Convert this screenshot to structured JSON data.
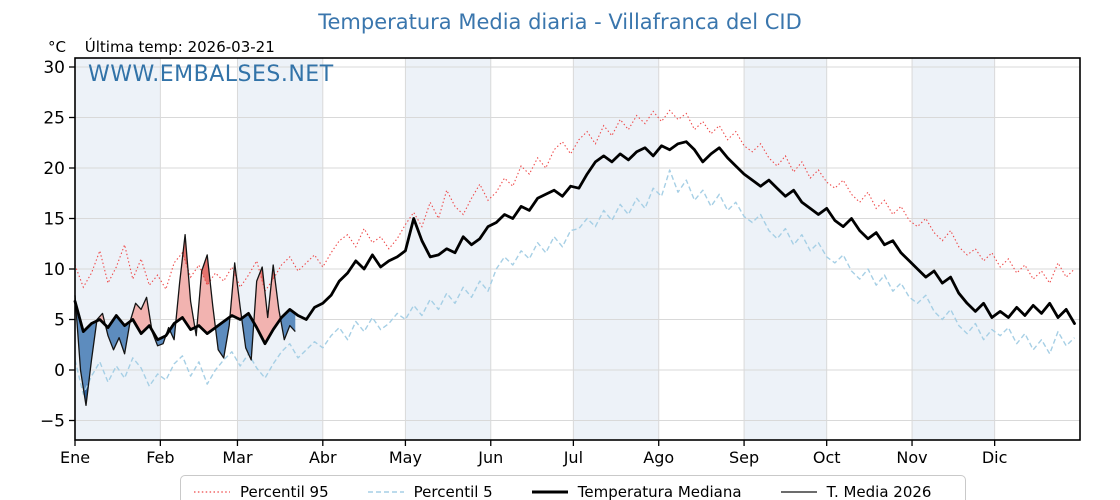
{
  "colors": {
    "title": "#3a76ad",
    "watermark": "#3273a8",
    "band": "#edf2f8",
    "grid": "#d9d9d9",
    "axis": "#000000",
    "p95": "#ee4848",
    "p5": "#a6cfe5",
    "median": "#000000",
    "t2026": "#141414",
    "fill_above": "#f2b3b0",
    "fill_above_extreme": "#e4736e",
    "fill_below": "#5d8cbe",
    "fill_below_extreme": "#2f639e",
    "legend_border": "#c9c9c9"
  },
  "chart_data": {
    "type": "line",
    "title": "Temperatura Media diaria - Villafranca del CID",
    "unit_label": "°C",
    "last_temp_label": "Última temp: 2026-03-21",
    "watermark": "WWW.EMBALSES.NET",
    "x_tick_labels": [
      "Ene",
      "Feb",
      "Mar",
      "Abr",
      "May",
      "Jun",
      "Jul",
      "Ago",
      "Sep",
      "Oct",
      "Nov",
      "Dic"
    ],
    "month_days": [
      31,
      28,
      31,
      30,
      31,
      30,
      31,
      31,
      30,
      31,
      30,
      31
    ],
    "y_ticks": [
      30,
      25,
      20,
      15,
      10,
      5,
      0,
      -5
    ],
    "y_tick_labels": [
      "30",
      "25",
      "20",
      "15",
      "10",
      "5",
      "0",
      "−5"
    ],
    "ylim": [
      -6.9,
      30.9
    ],
    "xlim_days": [
      0,
      365
    ],
    "grid": true,
    "alternating_month_bands": true,
    "legend_position": "bottom",
    "series": [
      {
        "name": "Percentil 95",
        "style": "dotted",
        "start_day": 0,
        "step_days": 3,
        "values": [
          10.4,
          8.2,
          9.6,
          11.8,
          8.6,
          10.2,
          12.4,
          9.0,
          11.0,
          8.4,
          9.4,
          8.0,
          10.6,
          11.6,
          9.2,
          10.4,
          8.4,
          9.6,
          8.8,
          10.2,
          8.2,
          9.4,
          10.8,
          7.8,
          9.0,
          10.4,
          11.2,
          9.8,
          10.6,
          11.4,
          10.2,
          11.6,
          12.8,
          13.4,
          12.2,
          14.0,
          12.6,
          13.2,
          12.0,
          13.0,
          14.4,
          15.6,
          14.2,
          16.6,
          15.0,
          17.8,
          16.2,
          15.4,
          17.0,
          18.4,
          16.8,
          17.6,
          19.0,
          18.2,
          20.2,
          19.4,
          21.0,
          20.0,
          21.8,
          22.6,
          21.4,
          22.8,
          23.6,
          22.4,
          24.2,
          23.2,
          24.8,
          23.8,
          25.2,
          24.4,
          25.6,
          24.6,
          25.7,
          24.8,
          25.4,
          23.8,
          24.6,
          23.4,
          24.2,
          22.8,
          23.6,
          22.2,
          21.6,
          22.4,
          21.0,
          20.2,
          21.2,
          19.6,
          20.6,
          19.0,
          19.8,
          18.6,
          18.0,
          18.8,
          17.4,
          16.6,
          17.6,
          16.0,
          16.8,
          15.4,
          16.2,
          14.8,
          14.2,
          15.0,
          13.6,
          12.8,
          13.8,
          12.2,
          11.4,
          12.0,
          10.8,
          11.6,
          10.2,
          11.0,
          9.6,
          10.4,
          9.0,
          9.8,
          8.6,
          10.6,
          9.2,
          10.0
        ]
      },
      {
        "name": "Percentil 5",
        "style": "dashed",
        "start_day": 0,
        "step_days": 3,
        "values": [
          1.0,
          -2.4,
          -0.6,
          0.8,
          -1.2,
          0.4,
          -0.8,
          1.2,
          0.2,
          -1.6,
          -0.4,
          -1.0,
          0.6,
          1.4,
          -0.6,
          0.8,
          -1.4,
          0.0,
          1.0,
          1.8,
          0.4,
          1.6,
          0.2,
          -0.8,
          0.6,
          1.8,
          2.6,
          1.2,
          2.0,
          2.8,
          2.2,
          3.4,
          4.2,
          3.0,
          4.8,
          3.8,
          5.2,
          4.0,
          4.6,
          5.6,
          5.0,
          6.4,
          5.4,
          7.0,
          6.0,
          7.6,
          6.6,
          8.2,
          7.2,
          8.8,
          7.8,
          10.0,
          11.2,
          10.4,
          11.8,
          11.0,
          12.6,
          11.6,
          13.2,
          12.2,
          13.8,
          14.0,
          15.0,
          14.2,
          15.8,
          14.8,
          16.4,
          15.4,
          17.0,
          16.0,
          18.0,
          17.2,
          19.8,
          17.6,
          18.8,
          16.8,
          17.8,
          16.2,
          17.4,
          15.8,
          16.6,
          15.2,
          14.6,
          15.4,
          13.8,
          13.0,
          14.0,
          12.4,
          13.4,
          11.8,
          12.6,
          11.2,
          10.6,
          11.4,
          9.8,
          9.0,
          10.0,
          8.4,
          9.4,
          7.8,
          8.6,
          7.2,
          6.6,
          7.4,
          5.8,
          5.0,
          6.0,
          4.4,
          3.6,
          4.6,
          3.0,
          4.0,
          3.4,
          4.2,
          2.6,
          3.6,
          2.0,
          3.0,
          1.6,
          3.8,
          2.4,
          3.2
        ]
      },
      {
        "name": "Temperatura Mediana",
        "style": "solid-thick",
        "start_day": 0,
        "step_days": 3,
        "values": [
          6.8,
          3.8,
          4.6,
          5.0,
          4.2,
          5.4,
          4.4,
          5.0,
          3.6,
          4.4,
          3.0,
          3.4,
          4.6,
          5.2,
          4.0,
          4.4,
          3.6,
          4.2,
          4.8,
          5.4,
          5.0,
          5.6,
          4.2,
          2.6,
          4.0,
          5.2,
          6.0,
          5.4,
          5.0,
          6.2,
          6.6,
          7.4,
          8.8,
          9.6,
          10.8,
          10.0,
          11.4,
          10.2,
          10.8,
          11.2,
          11.8,
          15.0,
          12.8,
          11.2,
          11.4,
          12.0,
          11.6,
          13.2,
          12.4,
          13.0,
          14.2,
          14.6,
          15.4,
          15.0,
          16.2,
          15.8,
          17.0,
          17.4,
          17.8,
          17.2,
          18.2,
          18.0,
          19.4,
          20.6,
          21.2,
          20.6,
          21.4,
          20.8,
          21.6,
          22.0,
          21.2,
          22.2,
          21.8,
          22.4,
          22.6,
          21.8,
          20.6,
          21.4,
          22.0,
          21.0,
          20.2,
          19.4,
          18.8,
          18.2,
          18.8,
          18.0,
          17.2,
          17.8,
          16.6,
          16.0,
          15.4,
          16.0,
          14.8,
          14.2,
          15.0,
          13.8,
          13.0,
          13.6,
          12.4,
          12.8,
          11.6,
          10.8,
          10.0,
          9.2,
          9.8,
          8.6,
          9.2,
          7.6,
          6.6,
          5.8,
          6.6,
          5.2,
          5.8,
          5.2,
          6.2,
          5.4,
          6.4,
          5.6,
          6.6,
          5.2,
          6.0,
          4.6
        ]
      },
      {
        "name": "T. Media 2026",
        "style": "solid-thin",
        "start_day": 0,
        "step_days": 2,
        "values": [
          7.4,
          0.0,
          -3.5,
          1.0,
          5.0,
          5.6,
          3.4,
          2.0,
          3.2,
          1.6,
          4.8,
          6.6,
          6.0,
          7.2,
          3.8,
          2.4,
          2.6,
          4.2,
          3.0,
          8.6,
          13.4,
          6.8,
          3.4,
          9.8,
          11.4,
          6.4,
          2.0,
          1.2,
          4.4,
          10.6,
          6.2,
          2.2,
          1.0,
          8.8,
          10.2,
          5.2,
          10.4,
          6.0,
          3.0,
          4.4,
          3.8
        ]
      }
    ],
    "fills_note": "red fill where T. Media 2026 above mediana (darker above percentil 95); blue fill where below mediana (darker below percentil 5)"
  }
}
